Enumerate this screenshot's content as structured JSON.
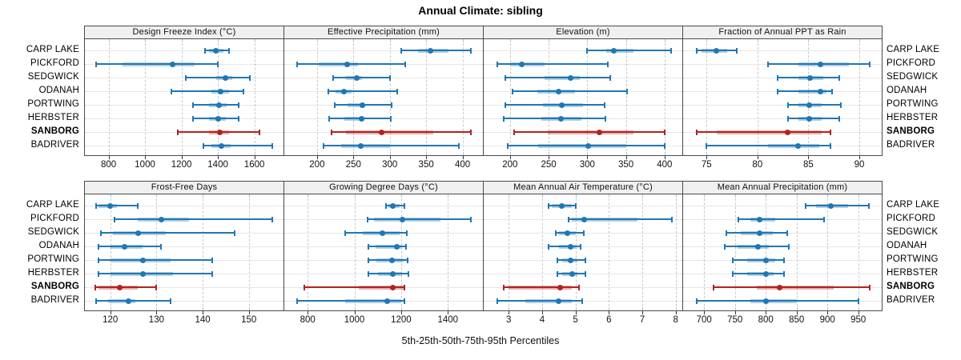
{
  "title": "Annual Climate: sibling",
  "caption": "5th-25th-50th-75th-95th Percentiles",
  "highlight_station": "SANBORG",
  "colors": {
    "series": "#1f77b4",
    "series_band": "rgba(31,119,180,0.35)",
    "highlight": "#b22222",
    "highlight_band": "rgba(178,34,34,0.35)",
    "strip_bg": "#f0f0f0",
    "grid": "#c9c9c9",
    "panel_border": "#4a4a4a"
  },
  "chart_data": {
    "type": "dotplot-percentiles",
    "layout": {
      "rows": 2,
      "cols": 4,
      "grid": "dashed-vertical dotted-horizontal",
      "legend": "none"
    },
    "percentile_labels": [
      "5th",
      "25th",
      "50th",
      "75th",
      "95th"
    ],
    "stations": [
      "CARP LAKE",
      "PICKFORD",
      "SEDGWICK",
      "ODANAH",
      "PORTWING",
      "HERBSTER",
      "SANBORG",
      "BADRIVER"
    ],
    "panels": [
      {
        "title": "Design Freeze Index (°C)",
        "ticks": [
          800,
          1000,
          1200,
          1400,
          1600
        ],
        "xlim": [
          670,
          1760
        ],
        "values": [
          [
            1330,
            1350,
            1390,
            1430,
            1460
          ],
          [
            730,
            875,
            1150,
            1270,
            1400
          ],
          [
            1225,
            1390,
            1440,
            1480,
            1575
          ],
          [
            1145,
            1365,
            1415,
            1460,
            1540
          ],
          [
            1265,
            1350,
            1405,
            1450,
            1515
          ],
          [
            1265,
            1350,
            1400,
            1445,
            1515
          ],
          [
            1180,
            1350,
            1410,
            1460,
            1630
          ],
          [
            1320,
            1365,
            1420,
            1470,
            1700
          ]
        ]
      },
      {
        "title": "Effective Precipitation (mm)",
        "ticks": [
          200,
          250,
          300,
          350,
          400
        ],
        "xlim": [
          155,
          428
        ],
        "values": [
          [
            316,
            339,
            356,
            381,
            412
          ],
          [
            173,
            202,
            241,
            256,
            321
          ],
          [
            222,
            240,
            255,
            262,
            300
          ],
          [
            215,
            225,
            237,
            247,
            310
          ],
          [
            224,
            242,
            262,
            266,
            302
          ],
          [
            217,
            238,
            261,
            265,
            301
          ],
          [
            220,
            240,
            289,
            360,
            412
          ],
          [
            209,
            233,
            260,
            300,
            395
          ]
        ]
      },
      {
        "title": "Elevation (m)",
        "ticks": [
          200,
          250,
          300,
          350,
          400
        ],
        "xlim": [
          166,
          423
        ],
        "values": [
          [
            300,
            325,
            334,
            360,
            409
          ],
          [
            184,
            200,
            215,
            245,
            327
          ],
          [
            194,
            245,
            278,
            290,
            330
          ],
          [
            203,
            235,
            263,
            284,
            352
          ],
          [
            194,
            243,
            267,
            295,
            322
          ],
          [
            192,
            241,
            266,
            292,
            324
          ],
          [
            205,
            249,
            316,
            360,
            400
          ],
          [
            197,
            236,
            301,
            350,
            400
          ]
        ]
      },
      {
        "title": "Fraction of Annual PPT as Rain",
        "ticks": [
          75,
          80,
          85,
          90
        ],
        "xlim": [
          72.7,
          92.2
        ],
        "values": [
          [
            74,
            74.5,
            76,
            77,
            78
          ],
          [
            81,
            84,
            86.2,
            89,
            91
          ],
          [
            82,
            84,
            85.2,
            86.5,
            88
          ],
          [
            82,
            84,
            86.2,
            86.8,
            87.3
          ],
          [
            83,
            84,
            85.1,
            86.3,
            88.2
          ],
          [
            83,
            84,
            85.1,
            86.3,
            88
          ],
          [
            74,
            76,
            83,
            86.3,
            87.2
          ],
          [
            75,
            81,
            84,
            86.1,
            87.2
          ]
        ]
      },
      {
        "title": "Frost-Free Days",
        "ticks": [
          120,
          130,
          140,
          150
        ],
        "xlim": [
          114.5,
          157.5
        ],
        "values": [
          [
            117,
            117.5,
            120,
            121.5,
            126
          ],
          [
            121,
            126,
            131,
            137,
            155
          ],
          [
            118,
            120.5,
            126,
            132,
            147
          ],
          [
            117.5,
            120,
            123,
            127,
            131
          ],
          [
            117.5,
            120,
            127,
            133,
            142
          ],
          [
            117.5,
            120,
            127,
            133.5,
            142
          ],
          [
            116.7,
            117.5,
            122,
            126,
            130
          ],
          [
            117,
            119.5,
            124,
            125.5,
            133
          ]
        ]
      },
      {
        "title": "Growing Degree Days (°C)",
        "ticks": [
          800,
          1000,
          1200,
          1400
        ],
        "xlim": [
          700,
          1550
        ],
        "values": [
          [
            1135,
            1145,
            1165,
            1195,
            1215
          ],
          [
            1055,
            1085,
            1205,
            1370,
            1500
          ],
          [
            960,
            1035,
            1120,
            1195,
            1225
          ],
          [
            1060,
            1090,
            1180,
            1200,
            1220
          ],
          [
            1060,
            1095,
            1160,
            1210,
            1228
          ],
          [
            1060,
            1100,
            1163,
            1205,
            1230
          ],
          [
            785,
            1020,
            1165,
            1210,
            1215
          ],
          [
            755,
            960,
            1140,
            1200,
            1215
          ]
        ]
      },
      {
        "title": "Mean Annual Air Temperature (°C)",
        "ticks": [
          3,
          4,
          5,
          6,
          7,
          8
        ],
        "xlim": [
          2.25,
          8.2
        ],
        "values": [
          [
            4.2,
            4.3,
            4.6,
            4.9,
            5.0
          ],
          [
            4.8,
            4.9,
            5.25,
            6.85,
            7.9
          ],
          [
            4.4,
            4.5,
            4.75,
            5.0,
            5.25
          ],
          [
            4.2,
            4.5,
            4.85,
            5.0,
            5.15
          ],
          [
            4.45,
            4.6,
            4.85,
            5.05,
            5.3
          ],
          [
            4.45,
            4.6,
            4.9,
            5.05,
            5.3
          ],
          [
            2.85,
            3.0,
            4.55,
            4.9,
            5.1
          ],
          [
            2.65,
            3.5,
            4.5,
            4.9,
            5.2
          ]
        ]
      },
      {
        "title": "Mean Annual Precipitation (mm)",
        "ticks": [
          700,
          750,
          800,
          850,
          900,
          950
        ],
        "xlim": [
          666,
          988
        ],
        "values": [
          [
            865,
            882,
            905,
            933,
            967
          ],
          [
            755,
            775,
            790,
            815,
            895
          ],
          [
            736,
            759,
            790,
            811,
            835
          ],
          [
            733,
            754,
            787,
            805,
            838
          ],
          [
            747,
            770,
            800,
            815,
            830
          ],
          [
            747,
            770,
            800,
            813,
            830
          ],
          [
            715,
            785,
            823,
            910,
            968
          ],
          [
            688,
            775,
            800,
            850,
            950
          ]
        ]
      }
    ]
  }
}
